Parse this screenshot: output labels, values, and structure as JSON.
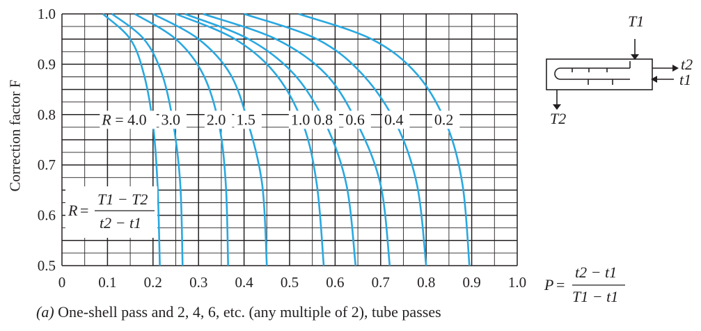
{
  "chart_data": {
    "type": "line",
    "xlabel": "P",
    "ylabel": "Correction factor F",
    "xlim": [
      0,
      1.0
    ],
    "ylim": [
      0.5,
      1.0
    ],
    "grid": true,
    "x_ticks": [
      "0",
      "0.1",
      "0.2",
      "0.3",
      "0.4",
      "0.5",
      "0.6",
      "0.7",
      "0.8",
      "0.9",
      "1.0"
    ],
    "y_ticks": [
      "1.0",
      "0.9",
      "0.8",
      "0.7",
      "0.6",
      "0.5"
    ],
    "series": [
      {
        "name": "4.0",
        "x": [
          0.09,
          0.15,
          0.18,
          0.2,
          0.21,
          0.215
        ],
        "y": [
          1.0,
          0.95,
          0.88,
          0.78,
          0.66,
          0.5
        ]
      },
      {
        "name": "3.0",
        "x": [
          0.11,
          0.18,
          0.22,
          0.245,
          0.26,
          0.265
        ],
        "y": [
          1.0,
          0.95,
          0.88,
          0.78,
          0.66,
          0.5
        ]
      },
      {
        "name": "2.0",
        "x": [
          0.16,
          0.25,
          0.31,
          0.345,
          0.36,
          0.365
        ],
        "y": [
          1.0,
          0.95,
          0.88,
          0.78,
          0.66,
          0.5
        ]
      },
      {
        "name": "1.5",
        "x": [
          0.2,
          0.3,
          0.37,
          0.41,
          0.44,
          0.45
        ],
        "y": [
          1.0,
          0.95,
          0.88,
          0.78,
          0.66,
          0.5
        ]
      },
      {
        "name": "1.0",
        "x": [
          0.25,
          0.38,
          0.47,
          0.53,
          0.56,
          0.575
        ],
        "y": [
          1.0,
          0.95,
          0.88,
          0.78,
          0.66,
          0.5
        ]
      },
      {
        "name": "0.8",
        "x": [
          0.27,
          0.41,
          0.51,
          0.58,
          0.625,
          0.645
        ],
        "y": [
          1.0,
          0.95,
          0.88,
          0.78,
          0.66,
          0.5
        ]
      },
      {
        "name": "0.6",
        "x": [
          0.31,
          0.47,
          0.58,
          0.65,
          0.7,
          0.72
        ],
        "y": [
          1.0,
          0.95,
          0.88,
          0.78,
          0.66,
          0.5
        ]
      },
      {
        "name": "0.4",
        "x": [
          0.4,
          0.56,
          0.66,
          0.735,
          0.78,
          0.8
        ],
        "y": [
          1.0,
          0.95,
          0.88,
          0.78,
          0.66,
          0.5
        ]
      },
      {
        "name": "0.2",
        "x": [
          0.52,
          0.68,
          0.78,
          0.845,
          0.88,
          0.895
        ],
        "y": [
          1.0,
          0.95,
          0.88,
          0.78,
          0.66,
          0.5
        ]
      }
    ],
    "curve_labels": [
      {
        "text": "R = 4.0"
      },
      {
        "text": "3.0"
      },
      {
        "text": "2.0"
      },
      {
        "text": "1.5"
      },
      {
        "text": "1.0"
      },
      {
        "text": "0.8"
      },
      {
        "text": "0.6"
      },
      {
        "text": "0.4"
      },
      {
        "text": "0.2"
      }
    ],
    "annotations": {
      "r_formula": {
        "lhs": "R",
        "num": "T1 − T2",
        "den": "t2 − t1"
      },
      "p_formula": {
        "lhs": "P",
        "num": "t2 − t1",
        "den": "T1 − t1"
      }
    },
    "colors": {
      "curve": "#29a8e0",
      "grid": "#231f20",
      "text": "#231f20"
    }
  },
  "schematic": {
    "labels": {
      "T1": "T1",
      "T2": "T2",
      "t1": "t1",
      "t2": "t2"
    }
  },
  "caption": {
    "part": "(a)",
    "text": " One-shell pass and 2, 4, 6, etc. (any multiple of 2), tube passes"
  }
}
